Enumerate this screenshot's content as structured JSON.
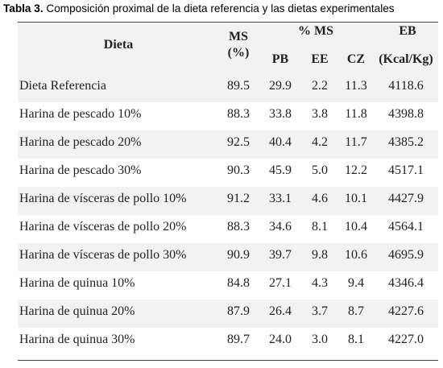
{
  "caption": {
    "label": "Tabla 3.",
    "text": " Composición proximal de la dieta referencia y las dietas experimentales"
  },
  "table": {
    "headers": {
      "dieta": "Dieta",
      "ms": "MS",
      "ms_unit": "(%)",
      "group_ms": "% MS",
      "pb": "PB",
      "ee": "EE",
      "cz": "CZ",
      "eb": "EB",
      "eb_unit": "(Kcal/Kg)"
    },
    "rows": [
      {
        "dieta": "Dieta Referencia",
        "ms": "89.5",
        "pb": "29.9",
        "ee": "2.2",
        "cz": "11.3",
        "eb": "4118.6"
      },
      {
        "dieta": "Harina de pescado 10%",
        "ms": "88.3",
        "pb": "33.8",
        "ee": "3.8",
        "cz": "11.8",
        "eb": "4398.8"
      },
      {
        "dieta": "Harina de pescado 20%",
        "ms": "92.5",
        "pb": "40.4",
        "ee": "4.2",
        "cz": "11.7",
        "eb": "4385.2"
      },
      {
        "dieta": "Harina de pescado 30%",
        "ms": "90.3",
        "pb": "45.9",
        "ee": "5.0",
        "cz": "12.2",
        "eb": "4517.1"
      },
      {
        "dieta": "Harina de vísceras de pollo 10%",
        "ms": "91.2",
        "pb": "33.1",
        "ee": "4.6",
        "cz": "10.1",
        "eb": "4427.9"
      },
      {
        "dieta": "Harina de vísceras de pollo 20%",
        "ms": "88.3",
        "pb": "34.6",
        "ee": "8.1",
        "cz": "10.4",
        "eb": "4564.1"
      },
      {
        "dieta": "Harina de vísceras de pollo 30%",
        "ms": "90.9",
        "pb": "39.7",
        "ee": "9.8",
        "cz": "10.6",
        "eb": "4695.9"
      },
      {
        "dieta": "Harina de quinua 10%",
        "ms": "84.8",
        "pb": "27.1",
        "ee": "4.3",
        "cz": "9.4",
        "eb": "4346.4"
      },
      {
        "dieta": "Harina de quinua 20%",
        "ms": "87.9",
        "pb": "26.4",
        "ee": "3.7",
        "cz": "8.7",
        "eb": "4227.6"
      },
      {
        "dieta": "Harina de quinua 30%",
        "ms": "89.7",
        "pb": "24.0",
        "ee": "3.0",
        "cz": "8.1",
        "eb": "4227.0"
      }
    ]
  }
}
